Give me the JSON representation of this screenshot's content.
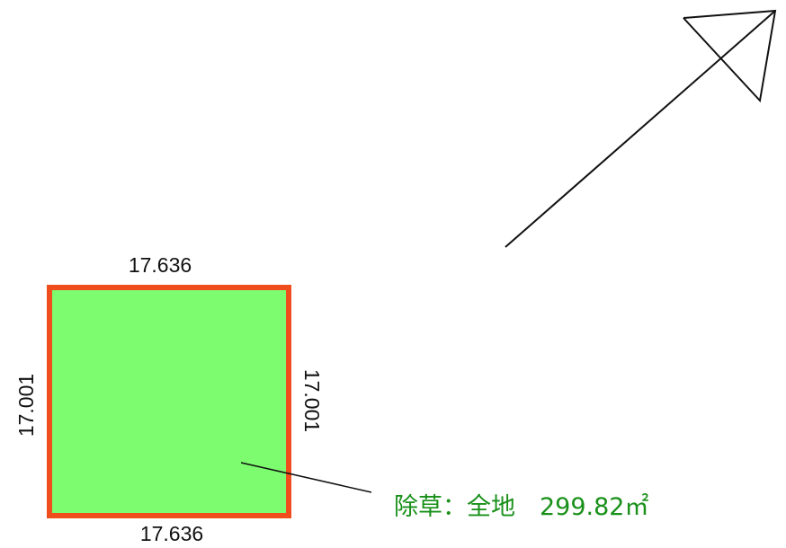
{
  "plot": {
    "fill_color": "#7dfc6f",
    "border_color": "#f04d1c",
    "dimensions": {
      "top": "17.636",
      "bottom": "17.636",
      "left": "17.001",
      "right": "17.001"
    }
  },
  "annotation": {
    "text": "除草：全地　299.82㎡",
    "color": "#199019"
  },
  "north_arrow": {
    "icon": "north-arrow-icon"
  }
}
